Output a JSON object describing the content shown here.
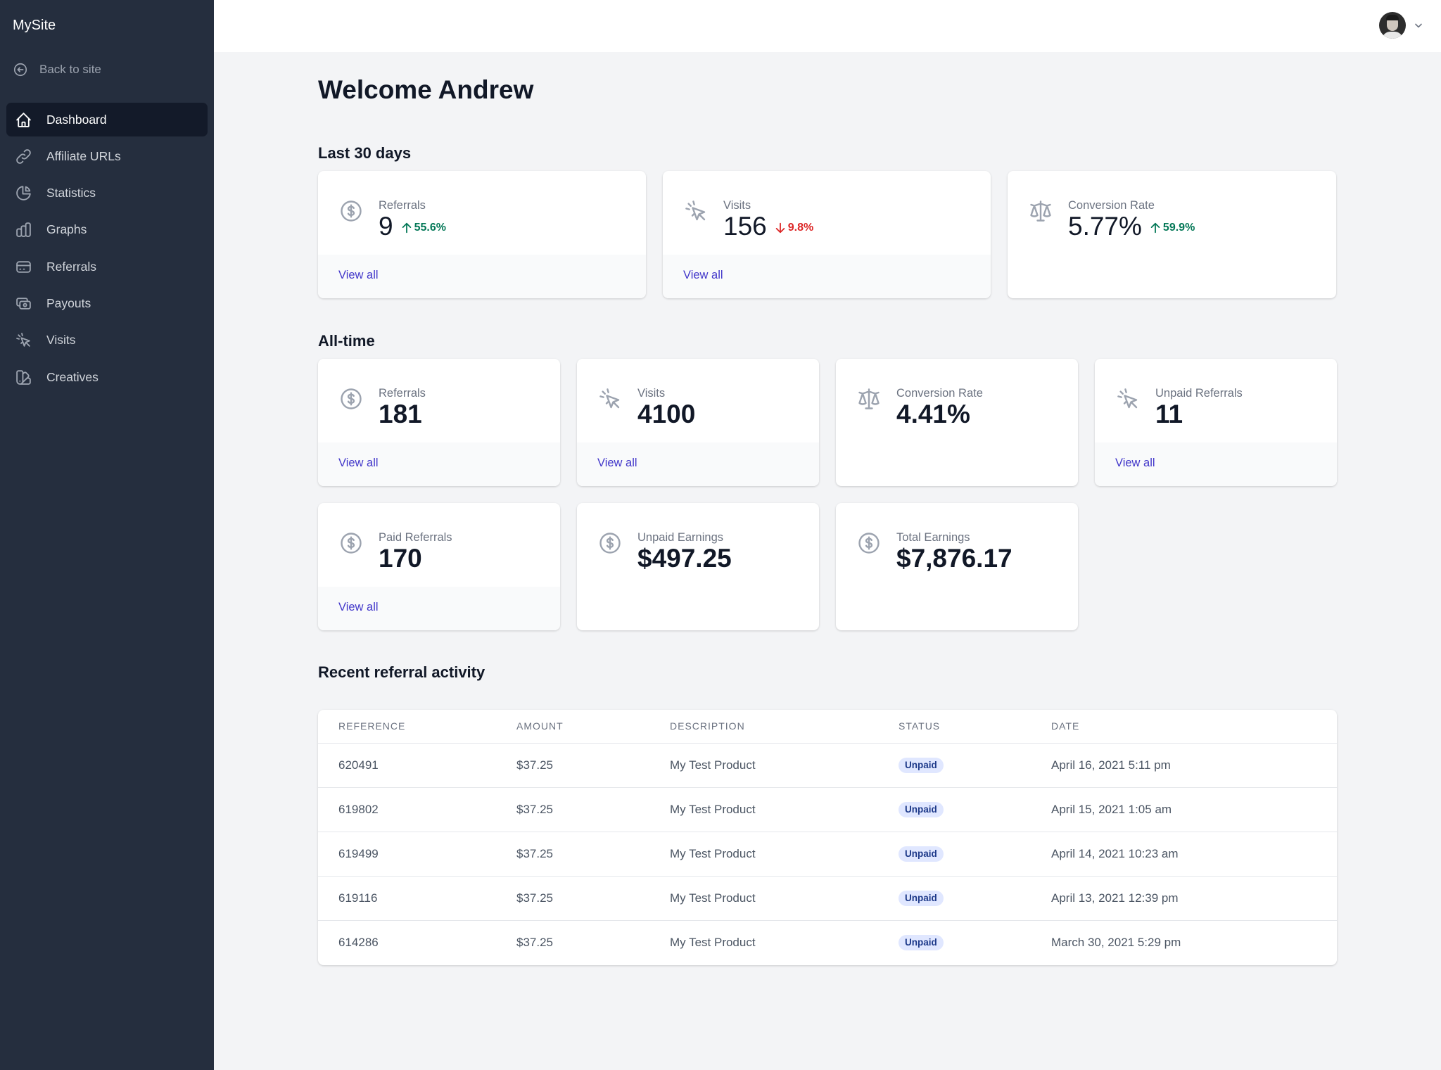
{
  "sidebar": {
    "brand": "MySite",
    "back_label": "Back to site",
    "items": [
      {
        "label": "Dashboard",
        "icon": "home-icon",
        "active": true
      },
      {
        "label": "Affiliate URLs",
        "icon": "link-icon"
      },
      {
        "label": "Statistics",
        "icon": "pie-chart-icon"
      },
      {
        "label": "Graphs",
        "icon": "bar-chart-icon"
      },
      {
        "label": "Referrals",
        "icon": "credit-card-icon"
      },
      {
        "label": "Payouts",
        "icon": "cash-icon"
      },
      {
        "label": "Visits",
        "icon": "cursor-click-icon"
      },
      {
        "label": "Creatives",
        "icon": "color-swatch-icon"
      }
    ]
  },
  "header": {
    "avatar": "user-avatar",
    "menu_icon": "chevron-down-icon"
  },
  "page": {
    "title": "Welcome Andrew",
    "last30_title": "Last 30 days",
    "alltime_title": "All-time",
    "recent_title": "Recent referral activity"
  },
  "last30": [
    {
      "label": "Referrals",
      "value": "9",
      "trend": "55.6%",
      "trend_dir": "up",
      "icon": "currency-dollar-icon",
      "link": "View all"
    },
    {
      "label": "Visits",
      "value": "156",
      "trend": "9.8%",
      "trend_dir": "down",
      "icon": "cursor-click-icon",
      "link": "View all"
    },
    {
      "label": "Conversion Rate",
      "value": "5.77%",
      "trend": "59.9%",
      "trend_dir": "up",
      "icon": "scale-icon"
    }
  ],
  "alltime": [
    {
      "label": "Referrals",
      "value": "181",
      "icon": "currency-dollar-icon",
      "link": "View all"
    },
    {
      "label": "Visits",
      "value": "4100",
      "icon": "cursor-click-icon",
      "link": "View all"
    },
    {
      "label": "Conversion Rate",
      "value": "4.41%",
      "icon": "scale-icon"
    },
    {
      "label": "Unpaid Referrals",
      "value": "11",
      "icon": "cursor-click-icon",
      "link": "View all"
    },
    {
      "label": "Paid Referrals",
      "value": "170",
      "icon": "currency-dollar-icon",
      "link": "View all"
    },
    {
      "label": "Unpaid Earnings",
      "value": "$497.25",
      "icon": "currency-dollar-icon"
    },
    {
      "label": "Total Earnings",
      "value": "$7,876.17",
      "icon": "currency-dollar-icon"
    }
  ],
  "table": {
    "headers": [
      "REFERENCE",
      "AMOUNT",
      "DESCRIPTION",
      "STATUS",
      "DATE"
    ],
    "rows": [
      {
        "reference": "620491",
        "amount": "$37.25",
        "description": "My Test Product",
        "status": "Unpaid",
        "date": "April 16, 2021 5:11 pm"
      },
      {
        "reference": "619802",
        "amount": "$37.25",
        "description": "My Test Product",
        "status": "Unpaid",
        "date": "April 15, 2021 1:05 am"
      },
      {
        "reference": "619499",
        "amount": "$37.25",
        "description": "My Test Product",
        "status": "Unpaid",
        "date": "April 14, 2021 10:23 am"
      },
      {
        "reference": "619116",
        "amount": "$37.25",
        "description": "My Test Product",
        "status": "Unpaid",
        "date": "April 13, 2021 12:39 pm"
      },
      {
        "reference": "614286",
        "amount": "$37.25",
        "description": "My Test Product",
        "status": "Unpaid",
        "date": "March 30, 2021 5:29 pm"
      }
    ]
  },
  "colors": {
    "sidebar_bg": "#252e3e",
    "active_item_bg": "#131a29",
    "link": "#4338ca",
    "trend_up": "#047857",
    "trend_down": "#dc2626",
    "badge_bg": "#e0e7ff"
  }
}
